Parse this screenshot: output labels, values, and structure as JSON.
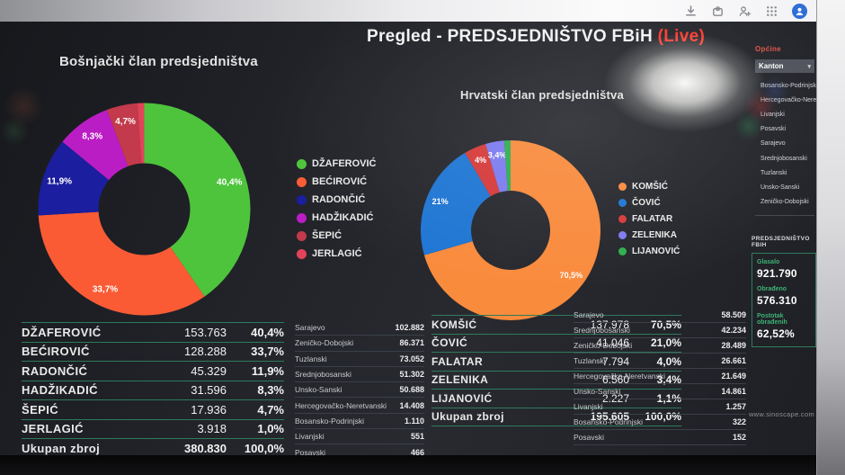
{
  "header": {
    "title": "Pregled - PREDSJEDNIŠTVO FBiH",
    "live": "(Live)"
  },
  "colors": {
    "live": "#ff3a2e",
    "table_divider": "#2f7a5a",
    "panel_border": "#2e7d5b",
    "stat_label": "#3db273"
  },
  "browser": {
    "icons": [
      "download-icon",
      "extensions-icon",
      "profile-add-icon",
      "apps-grid-icon",
      "avatar"
    ]
  },
  "chart_data": [
    {
      "type": "pie",
      "title": "Bošnjački član predsjedništva",
      "labels": [
        "DŽAFEROVIĆ",
        "BEĆIROVIĆ",
        "RADONČIĆ",
        "HADŽIKADIĆ",
        "ŠEPIĆ",
        "JERLAGIĆ"
      ],
      "values": [
        153763,
        128288,
        45329,
        31596,
        17936,
        3918
      ],
      "percent_labels": [
        "40,4%",
        "33,7%",
        "11,9%",
        "8,3%",
        "4,7%",
        ""
      ],
      "colors": [
        "#4ec43c",
        "#fa5b35",
        "#1b1e9e",
        "#bb1dc4",
        "#c23a4b",
        "#e2435a"
      ],
      "total": 380830,
      "donut": true,
      "legend_position": "right"
    },
    {
      "type": "pie",
      "title": "Hrvatski član predsjedništva",
      "labels": [
        "KOMŠIĆ",
        "ČOVIĆ",
        "FALATAR",
        "ZELENIKA",
        "LIJANOVIĆ"
      ],
      "values": [
        137978,
        41046,
        7794,
        6560,
        2227
      ],
      "percent_labels": [
        "70,5%",
        "21%",
        "4%",
        "3,4%",
        ""
      ],
      "colors": [
        "#f98b3d",
        "#1f76d3",
        "#d63a3a",
        "#7d7bef",
        "#2fae4f"
      ],
      "total": 195605,
      "donut": true,
      "legend_position": "right"
    }
  ],
  "tables": {
    "bosniak_results": {
      "rows": [
        {
          "name": "DŽAFEROVIĆ",
          "votes": "153.763",
          "pct": "40,4%"
        },
        {
          "name": "BEĆIROVIĆ",
          "votes": "128.288",
          "pct": "33,7%"
        },
        {
          "name": "RADONČIĆ",
          "votes": "45.329",
          "pct": "11,9%"
        },
        {
          "name": "HADŽIKADIĆ",
          "votes": "31.596",
          "pct": "8,3%"
        },
        {
          "name": "ŠEPIĆ",
          "votes": "17.936",
          "pct": "4,7%"
        },
        {
          "name": "JERLAGIĆ",
          "votes": "3.918",
          "pct": "1,0%"
        },
        {
          "name": "Ukupan zbroj",
          "votes": "380.830",
          "pct": "100,0%",
          "total": true
        }
      ]
    },
    "bosniak_by_canton": {
      "rows": [
        {
          "name": "Sarajevo",
          "votes": "102.882"
        },
        {
          "name": "Zeničko-Dobojski",
          "votes": "86.371"
        },
        {
          "name": "Tuzlanski",
          "votes": "73.052"
        },
        {
          "name": "Srednjobosanski",
          "votes": "51.302"
        },
        {
          "name": "Unsko-Sanski",
          "votes": "50.688"
        },
        {
          "name": "Hercegovačko-Neretvanski",
          "votes": "14.408"
        },
        {
          "name": "Bosansko-Podrinjski",
          "votes": "1.110"
        },
        {
          "name": "Livanjski",
          "votes": "551"
        },
        {
          "name": "Posavski",
          "votes": "466"
        }
      ]
    },
    "croat_results": {
      "rows": [
        {
          "name": "KOMŠIĆ",
          "votes": "137.978",
          "pct": "70,5%"
        },
        {
          "name": "ČOVIĆ",
          "votes": "41.046",
          "pct": "21,0%"
        },
        {
          "name": "FALATAR",
          "votes": "7.794",
          "pct": "4,0%"
        },
        {
          "name": "ZELENIKA",
          "votes": "6.560",
          "pct": "3,4%"
        },
        {
          "name": "LIJANOVIĆ",
          "votes": "2.227",
          "pct": "1,1%"
        },
        {
          "name": "Ukupan zbroj",
          "votes": "195.605",
          "pct": "100,0%",
          "total": true
        }
      ]
    },
    "croat_by_canton": {
      "rows": [
        {
          "name": "Sarajevo",
          "votes": "58.509"
        },
        {
          "name": "Srednjobosanski",
          "votes": "42.234"
        },
        {
          "name": "Zeničko-Dobojski",
          "votes": "28.489"
        },
        {
          "name": "Tuzlanski",
          "votes": "26.661"
        },
        {
          "name": "Hercegovačko-Neretvanski",
          "votes": "21.649"
        },
        {
          "name": "Unsko-Sanski",
          "votes": "14.861"
        },
        {
          "name": "Livanjski",
          "votes": "1.257"
        },
        {
          "name": "Bosansko-Podrinjski",
          "votes": "322"
        },
        {
          "name": "Posavski",
          "votes": "152"
        }
      ]
    }
  },
  "sidebar": {
    "section_label": "Općine",
    "selected_filter": "Kanton",
    "items": [
      "Bosansko-Podrinjski",
      "Hercegovačko-Neretvanski",
      "Livanjski",
      "Posavski",
      "Sarajevo",
      "Srednjobosanski",
      "Tuzlanski",
      "Unsko-Sanski",
      "Zeničko-Dobojski"
    ]
  },
  "summary": {
    "title": "PREDSJEDNIŠTVO FBIH",
    "stats": [
      {
        "label": "Glasalo",
        "value": "921.790"
      },
      {
        "label": "Obrađeno",
        "value": "576.310"
      },
      {
        "label": "Postotak obrađenih",
        "value": "62,52%"
      }
    ]
  },
  "watermark": "www.sinoscape.com"
}
